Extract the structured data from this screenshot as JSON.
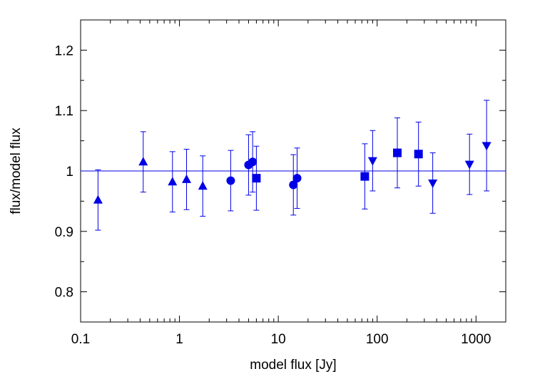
{
  "chart_data": {
    "type": "scatter",
    "title": "",
    "xlabel": "model flux [Jy]",
    "ylabel": "flux/model flux",
    "xscale": "log",
    "xlim": [
      0.1,
      2000
    ],
    "ylim": [
      0.75,
      1.25
    ],
    "x_ticks": [
      0.1,
      1,
      10,
      100,
      1000
    ],
    "x_tick_labels": [
      "0.1",
      "1",
      "10",
      "100",
      "1000"
    ],
    "y_ticks": [
      0.8,
      0.9,
      1.0,
      1.1,
      1.2
    ],
    "y_tick_labels": [
      "0.8",
      "0.9",
      "1",
      "1.1",
      "1.2"
    ],
    "reference_line": 1.0,
    "grid": false,
    "legend": false,
    "color": "#0000e6",
    "series": [
      {
        "marker": "triangle-up",
        "points": [
          {
            "x": 0.15,
            "y": 0.952,
            "err": 0.05
          },
          {
            "x": 0.43,
            "y": 1.015,
            "err": 0.05
          },
          {
            "x": 0.85,
            "y": 0.982,
            "err": 0.05
          },
          {
            "x": 1.18,
            "y": 0.986,
            "err": 0.05
          },
          {
            "x": 1.72,
            "y": 0.975,
            "err": 0.05
          }
        ]
      },
      {
        "marker": "circle",
        "points": [
          {
            "x": 3.3,
            "y": 0.984,
            "err": 0.05
          },
          {
            "x": 5.0,
            "y": 1.01,
            "err": 0.05
          },
          {
            "x": 5.5,
            "y": 1.015,
            "err": 0.05
          },
          {
            "x": 14.2,
            "y": 0.977,
            "err": 0.05
          },
          {
            "x": 15.5,
            "y": 0.988,
            "err": 0.05
          }
        ]
      },
      {
        "marker": "square",
        "points": [
          {
            "x": 6.0,
            "y": 0.988,
            "err": 0.053
          },
          {
            "x": 75,
            "y": 0.991,
            "err": 0.054
          },
          {
            "x": 160,
            "y": 1.03,
            "err": 0.058
          },
          {
            "x": 262,
            "y": 1.028,
            "err": 0.053
          }
        ]
      },
      {
        "marker": "triangle-down",
        "points": [
          {
            "x": 90,
            "y": 1.017,
            "err": 0.05
          },
          {
            "x": 365,
            "y": 0.98,
            "err": 0.05
          },
          {
            "x": 860,
            "y": 1.011,
            "err": 0.05
          },
          {
            "x": 1280,
            "y": 1.042,
            "err": 0.075
          }
        ]
      }
    ]
  }
}
